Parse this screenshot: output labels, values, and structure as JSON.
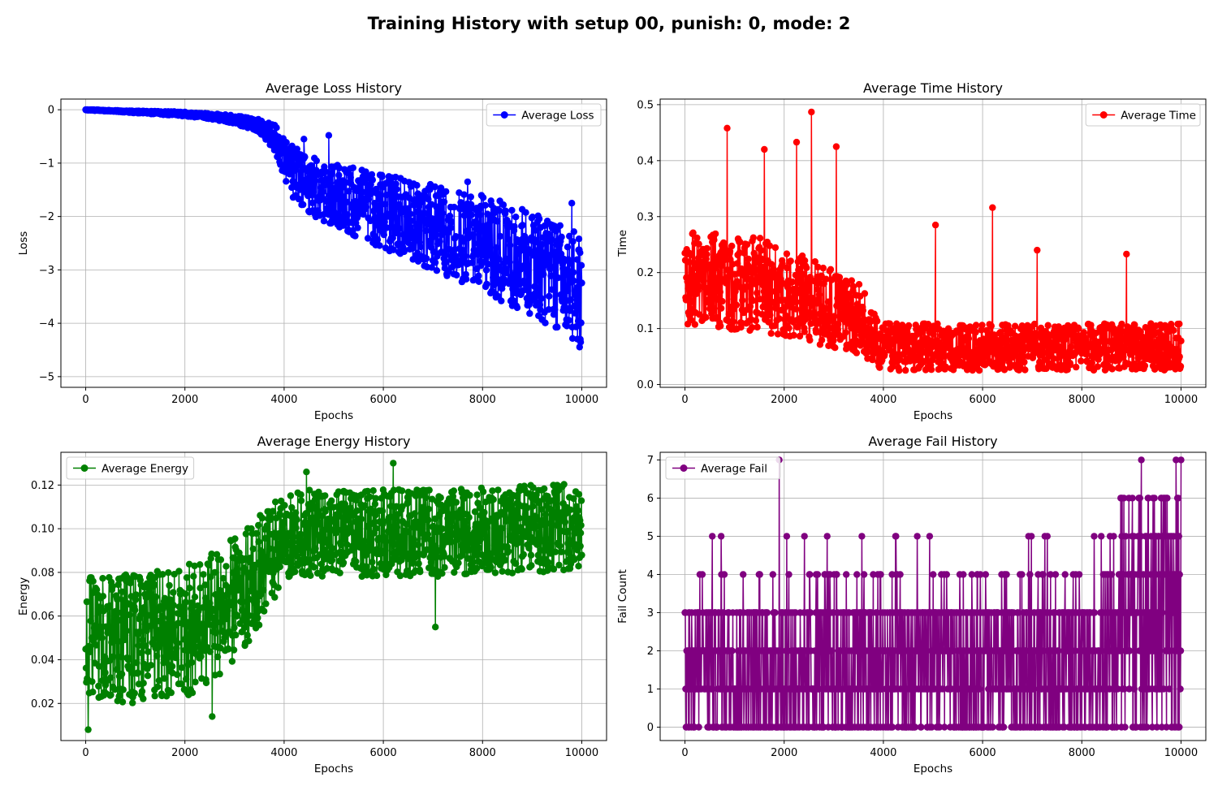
{
  "figure": {
    "title": "Training History with setup 00, punish: 0, mode: 2"
  },
  "chart_data": [
    {
      "id": "loss",
      "type": "line",
      "title": "Average Loss History",
      "xlabel": "Epochs",
      "ylabel": "Loss",
      "xlim": [
        -500,
        10500
      ],
      "ylim": [
        -5.2,
        0.2
      ],
      "xticks": [
        0,
        2000,
        4000,
        6000,
        8000,
        10000
      ],
      "yticks": [
        -5,
        -4,
        -3,
        -2,
        -1,
        0
      ],
      "grid": true,
      "legend": {
        "placement": "top-right",
        "entries": [
          "Average Loss"
        ]
      },
      "series": [
        {
          "name": "Average Loss",
          "color": "#0000ff",
          "marker": "circle",
          "x": [
            0,
            500,
            1000,
            1500,
            2000,
            2500,
            3000,
            3500,
            3800,
            4000,
            4200,
            4500,
            5000,
            5500,
            6000,
            6500,
            7000,
            7500,
            8000,
            8500,
            9000,
            9500,
            10000
          ],
          "mean": [
            0,
            -0.02,
            -0.04,
            -0.06,
            -0.08,
            -0.12,
            -0.18,
            -0.3,
            -0.5,
            -0.9,
            -1.2,
            -1.4,
            -1.6,
            -1.75,
            -1.9,
            -2.05,
            -2.2,
            -2.35,
            -2.5,
            -2.7,
            -2.9,
            -3.1,
            -3.4
          ],
          "spread": [
            0.01,
            0.01,
            0.02,
            0.03,
            0.04,
            0.05,
            0.08,
            0.12,
            0.25,
            0.4,
            0.5,
            0.55,
            0.6,
            0.65,
            0.7,
            0.75,
            0.8,
            0.85,
            0.9,
            0.95,
            1.0,
            1.05,
            1.1
          ],
          "outliers": [
            [
              4900,
              -0.48
            ],
            [
              4400,
              -0.55
            ],
            [
              6200,
              -1.55
            ],
            [
              7700,
              -1.35
            ],
            [
              9800,
              -1.75
            ]
          ]
        }
      ]
    },
    {
      "id": "time",
      "type": "line",
      "title": "Average Time History",
      "xlabel": "Epochs",
      "ylabel": "Time",
      "xlim": [
        -500,
        10500
      ],
      "ylim": [
        -0.005,
        0.51
      ],
      "xticks": [
        0,
        2000,
        4000,
        6000,
        8000,
        10000
      ],
      "yticks": [
        0.0,
        0.1,
        0.2,
        0.3,
        0.4,
        0.5
      ],
      "grid": true,
      "legend": {
        "placement": "top-right",
        "entries": [
          "Average Time"
        ]
      },
      "series": [
        {
          "name": "Average Time",
          "color": "#ff0000",
          "marker": "circle",
          "x": [
            0,
            500,
            1000,
            1500,
            2000,
            2500,
            3000,
            3500,
            4000,
            4500,
            5000,
            6000,
            7000,
            8000,
            9000,
            10000
          ],
          "mean": [
            0.15,
            0.15,
            0.14,
            0.14,
            0.13,
            0.12,
            0.11,
            0.1,
            0.07,
            0.07,
            0.07,
            0.07,
            0.07,
            0.07,
            0.07,
            0.07
          ],
          "spread": [
            0.12,
            0.12,
            0.12,
            0.12,
            0.11,
            0.11,
            0.1,
            0.09,
            0.06,
            0.06,
            0.06,
            0.06,
            0.06,
            0.06,
            0.06,
            0.06
          ],
          "outliers": [
            [
              2550,
              0.487
            ],
            [
              850,
              0.458
            ],
            [
              3050,
              0.425
            ],
            [
              2250,
              0.433
            ],
            [
              6200,
              0.316
            ],
            [
              5050,
              0.285
            ],
            [
              1600,
              0.42
            ],
            [
              7100,
              0.24
            ],
            [
              8900,
              0.233
            ]
          ]
        }
      ]
    },
    {
      "id": "energy",
      "type": "line",
      "title": "Average Energy History",
      "xlabel": "Epochs",
      "ylabel": "Energy",
      "xlim": [
        -500,
        10500
      ],
      "ylim": [
        0.003,
        0.135
      ],
      "xticks": [
        0,
        2000,
        4000,
        6000,
        8000,
        10000
      ],
      "yticks": [
        0.02,
        0.04,
        0.06,
        0.08,
        0.1,
        0.12
      ],
      "grid": true,
      "legend": {
        "placement": "top-left",
        "entries": [
          "Average Energy"
        ]
      },
      "series": [
        {
          "name": "Average Energy",
          "color": "#008000",
          "marker": "circle",
          "x": [
            0,
            1000,
            2000,
            2500,
            3000,
            3500,
            4000,
            4500,
            5000,
            6000,
            7000,
            8000,
            9000,
            10000
          ],
          "mean": [
            0.048,
            0.05,
            0.053,
            0.058,
            0.068,
            0.08,
            0.096,
            0.098,
            0.098,
            0.098,
            0.098,
            0.099,
            0.1,
            0.101
          ],
          "spread": [
            0.03,
            0.03,
            0.03,
            0.03,
            0.028,
            0.026,
            0.02,
            0.02,
            0.02,
            0.02,
            0.02,
            0.02,
            0.02,
            0.02
          ],
          "outliers": [
            [
              6200,
              0.13
            ],
            [
              4450,
              0.126
            ],
            [
              7050,
              0.055
            ],
            [
              50,
              0.008
            ],
            [
              2550,
              0.014
            ]
          ]
        }
      ]
    },
    {
      "id": "fail",
      "type": "line",
      "title": "Average Fail History",
      "xlabel": "Epochs",
      "ylabel": "Fail Count",
      "xlim": [
        -500,
        10500
      ],
      "ylim": [
        -0.35,
        7.2
      ],
      "xticks": [
        0,
        2000,
        4000,
        6000,
        8000,
        10000
      ],
      "yticks": [
        0,
        1,
        2,
        3,
        4,
        5,
        6,
        7
      ],
      "grid": true,
      "legend": {
        "placement": "top-left",
        "entries": [
          "Average Fail"
        ]
      },
      "series": [
        {
          "name": "Average Fail",
          "color": "#800080",
          "marker": "circle",
          "x_range": [
            0,
            10000
          ],
          "values_discrete": [
            0,
            1,
            2,
            3,
            4,
            5,
            6,
            7
          ],
          "outliers": [
            [
              1900,
              7
            ],
            [
              9200,
              7
            ],
            [
              9900,
              7
            ],
            [
              10000,
              7
            ]
          ]
        }
      ]
    }
  ]
}
